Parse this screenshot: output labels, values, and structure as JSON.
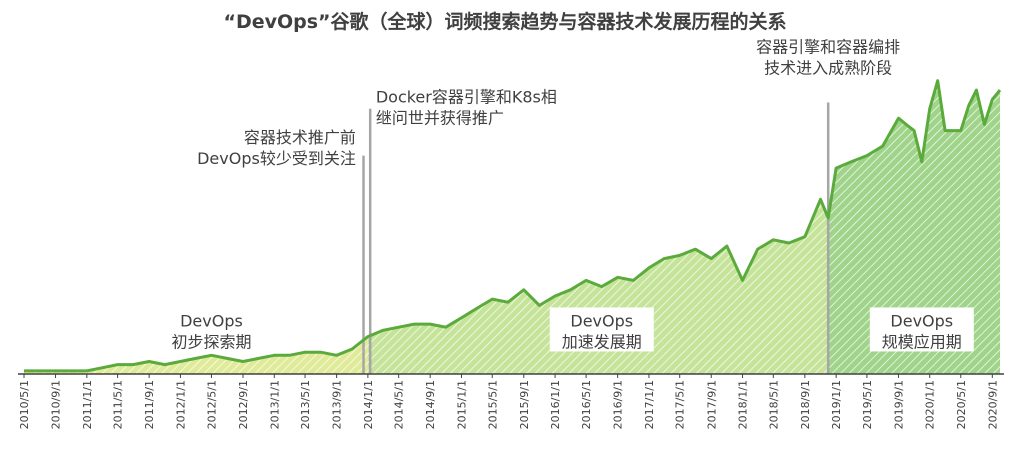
{
  "chart_data": {
    "type": "area",
    "title": "“DevOps”谷歌（全球）词频搜索趋势与容器技术发展历程的关系",
    "x_ticks": [
      "2010/5/1",
      "2010/9/1",
      "2011/1/1",
      "2011/5/1",
      "2011/9/1",
      "2012/1/1",
      "2012/5/1",
      "2012/9/1",
      "2013/1/1",
      "2013/5/1",
      "2013/9/1",
      "2014/1/1",
      "2014/5/1",
      "2014/9/1",
      "2015/1/1",
      "2015/5/1",
      "2015/9/1",
      "2016/1/1",
      "2016/5/1",
      "2016/9/1",
      "2017/1/1",
      "2017/5/1",
      "2017/9/1",
      "2018/1/1",
      "2018/5/1",
      "2018/9/1",
      "2019/1/1",
      "2019/5/1",
      "2019/9/1",
      "2020/1/1",
      "2020/5/1",
      "2020/9/1"
    ],
    "x_start": "2010/5/1",
    "x_end": "2020/10/1",
    "ylim": [
      0,
      100
    ],
    "series": [
      {
        "points": [
          [
            "2010/5/1",
            1
          ],
          [
            "2010/9/1",
            1
          ],
          [
            "2011/1/1",
            1
          ],
          [
            "2011/3/1",
            2
          ],
          [
            "2011/5/1",
            3
          ],
          [
            "2011/7/1",
            3
          ],
          [
            "2011/9/1",
            4
          ],
          [
            "2011/11/1",
            3
          ],
          [
            "2012/1/1",
            4
          ],
          [
            "2012/3/1",
            5
          ],
          [
            "2012/5/1",
            6
          ],
          [
            "2012/7/1",
            5
          ],
          [
            "2012/9/1",
            4
          ],
          [
            "2012/11/1",
            5
          ],
          [
            "2013/1/1",
            6
          ],
          [
            "2013/3/1",
            6
          ],
          [
            "2013/5/1",
            7
          ],
          [
            "2013/7/1",
            7
          ],
          [
            "2013/9/1",
            6
          ],
          [
            "2013/11/1",
            8
          ],
          [
            "2014/1/1",
            12
          ],
          [
            "2014/3/1",
            14
          ],
          [
            "2014/5/1",
            15
          ],
          [
            "2014/7/1",
            16
          ],
          [
            "2014/9/1",
            16
          ],
          [
            "2014/11/1",
            15
          ],
          [
            "2015/1/1",
            18
          ],
          [
            "2015/3/1",
            21
          ],
          [
            "2015/5/1",
            24
          ],
          [
            "2015/7/1",
            23
          ],
          [
            "2015/9/1",
            27
          ],
          [
            "2015/11/1",
            22
          ],
          [
            "2016/1/1",
            25
          ],
          [
            "2016/3/1",
            27
          ],
          [
            "2016/5/1",
            30
          ],
          [
            "2016/7/1",
            28
          ],
          [
            "2016/9/1",
            31
          ],
          [
            "2016/11/1",
            30
          ],
          [
            "2017/1/1",
            34
          ],
          [
            "2017/3/1",
            37
          ],
          [
            "2017/5/1",
            38
          ],
          [
            "2017/7/1",
            40
          ],
          [
            "2017/9/1",
            37
          ],
          [
            "2017/11/1",
            41
          ],
          [
            "2018/1/1",
            30
          ],
          [
            "2018/3/1",
            40
          ],
          [
            "2018/5/1",
            43
          ],
          [
            "2018/7/1",
            42
          ],
          [
            "2018/9/1",
            44
          ],
          [
            "2018/11/1",
            56
          ],
          [
            "2018/12/1",
            50
          ],
          [
            "2019/1/1",
            66
          ],
          [
            "2019/3/1",
            68
          ],
          [
            "2019/5/1",
            70
          ],
          [
            "2019/7/1",
            73
          ],
          [
            "2019/9/1",
            82
          ],
          [
            "2019/10/1",
            80
          ],
          [
            "2019/11/1",
            78
          ],
          [
            "2019/12/1",
            68
          ],
          [
            "2020/1/1",
            85
          ],
          [
            "2020/2/1",
            94
          ],
          [
            "2020/3/1",
            78
          ],
          [
            "2020/5/1",
            78
          ],
          [
            "2020/6/1",
            86
          ],
          [
            "2020/7/1",
            91
          ],
          [
            "2020/8/1",
            80
          ],
          [
            "2020/9/1",
            88
          ],
          [
            "2020/10/1",
            91
          ]
        ]
      }
    ],
    "phases": [
      {
        "start": "2010/5/1",
        "end": "2014/1/1",
        "label_l1": "DevOps",
        "label_l2": "初步探索期",
        "fill": "#e0eb9a",
        "label_date": "2012/5/1",
        "label_y": 13
      },
      {
        "start": "2014/1/1",
        "end": "2018/12/1",
        "label_l1": "DevOps",
        "label_l2": "加速发展期",
        "fill": "#c5e49a",
        "label_date": "2016/7/1",
        "label_y": 13
      },
      {
        "start": "2018/12/1",
        "end": "2020/10/1",
        "label_l1": "DevOps",
        "label_l2": "规模应用期",
        "fill": "#9fd48a",
        "label_date": "2019/12/1",
        "label_y": 13
      }
    ],
    "milestones": [
      {
        "date": "2013/12/15",
        "label_l1": "容器技术推广前",
        "label_l2": "DevOps较少受到关注",
        "marker_top": 70,
        "text_anchor": "end",
        "text_date": "2013/11/15",
        "text_y": 74
      },
      {
        "date": "2014/1/10",
        "label_l1": "Docker容器引擎和K8s相",
        "label_l2": "继问世并获得推广",
        "marker_top": 85,
        "text_anchor": "start",
        "text_date": "2014/2/1",
        "text_y": 87
      },
      {
        "date": "2018/12/1",
        "label_l1": "容器引擎和容器编排",
        "label_l2": "技术进入成熟阶段",
        "marker_top": 87,
        "text_anchor": "middle",
        "text_date": "2018/12/1",
        "text_y": 103
      }
    ],
    "colors": {
      "line": "#5aaa3c",
      "guide": "#a6a6a6",
      "text": "#404040"
    }
  }
}
